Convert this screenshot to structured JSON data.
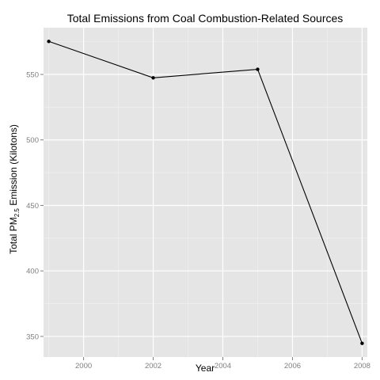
{
  "chart_data": {
    "type": "line",
    "title": "Total Emissions from Coal Combustion-Related Sources",
    "xlabel": "Year",
    "ylabel": {
      "prefix": "Total PM",
      "subscript": "2.5",
      "suffix": " Emission (Kilotons)"
    },
    "x": [
      1999,
      2002,
      2005,
      2008
    ],
    "series": [
      {
        "values": [
          575.2,
          547.4,
          553.9,
          344.7
        ]
      }
    ],
    "xlim": [
      1998.85,
      2008.15
    ],
    "ylim": [
      334.25,
      585.65
    ],
    "xticks": [
      2000,
      2002,
      2004,
      2006,
      2008
    ],
    "yticks": [
      350,
      400,
      450,
      500,
      550
    ],
    "grid": true,
    "markers": true,
    "colors": {
      "panel": "#e5e5e5",
      "grid_major": "#ffffff",
      "grid_minor": "#f2f2f2",
      "line": "#000000",
      "tick_label": "#7f7f7f"
    }
  }
}
